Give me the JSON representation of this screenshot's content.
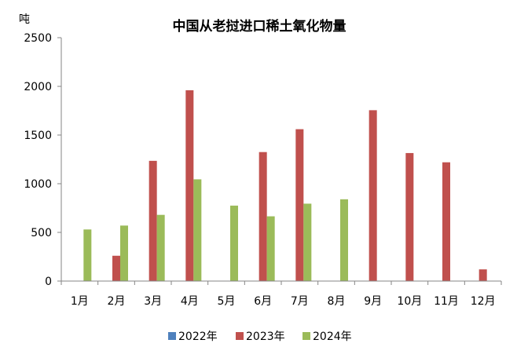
{
  "chart_data": {
    "type": "bar",
    "title": "中国从老挝进口稀土氧化物量",
    "ylabel": "吨",
    "xlabel": "",
    "ylim": [
      0,
      2500
    ],
    "yticks": [
      0,
      500,
      1000,
      1500,
      2000,
      2500
    ],
    "grid": false,
    "legend_position": "bottom",
    "categories": [
      "1月",
      "2月",
      "3月",
      "4月",
      "5月",
      "6月",
      "7月",
      "8月",
      "9月",
      "10月",
      "11月",
      "12月"
    ],
    "series": [
      {
        "name": "2022年",
        "color": "#4F81BD",
        "values": [
          0,
          0,
          0,
          0,
          0,
          0,
          0,
          0,
          0,
          0,
          0,
          0
        ]
      },
      {
        "name": "2023年",
        "color": "#C0504D",
        "values": [
          0,
          260,
          1235,
          1960,
          0,
          1325,
          1560,
          0,
          1755,
          1315,
          1220,
          120
        ]
      },
      {
        "name": "2024年",
        "color": "#9BBB59",
        "values": [
          530,
          570,
          680,
          1045,
          775,
          665,
          795,
          840,
          0,
          0,
          0,
          0
        ]
      }
    ]
  }
}
